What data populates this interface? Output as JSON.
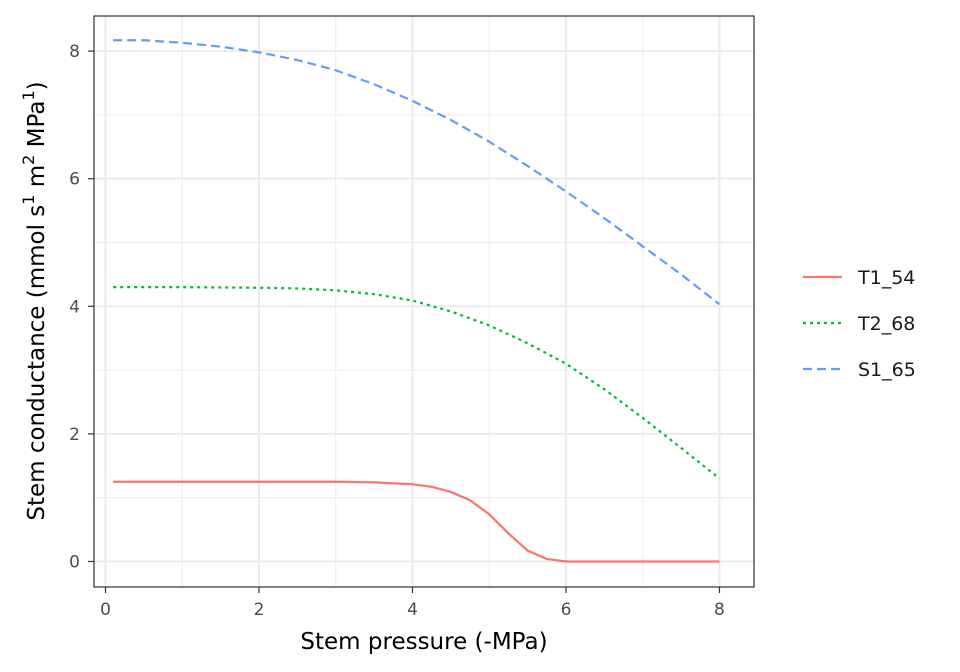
{
  "chart_data": {
    "type": "line",
    "xlabel": "Stem pressure (-MPa)",
    "ylabel_parts": [
      "Stem conductance  (mmol  s",
      "1",
      "  m",
      "2",
      "  MPa",
      "1",
      ")"
    ],
    "xlim": [
      -0.15,
      8.45
    ],
    "ylim": [
      -0.4,
      8.55
    ],
    "x_ticks": [
      0,
      2,
      4,
      6,
      8
    ],
    "x_tick_labels": [
      "0",
      "2",
      "4",
      "6",
      "8"
    ],
    "y_ticks": [
      0,
      2,
      4,
      6,
      8
    ],
    "y_tick_labels": [
      "0",
      "2",
      "4",
      "6",
      "8"
    ],
    "grid": true,
    "legend_position": "right",
    "series": [
      {
        "name": "T1_54",
        "color": "#F8766D",
        "dash": "solid",
        "x": [
          0.1,
          1,
          2,
          3,
          3.5,
          4,
          4.25,
          4.5,
          4.75,
          5,
          5.25,
          5.5,
          5.75,
          6,
          6.5,
          7,
          8
        ],
        "y": [
          1.25,
          1.25,
          1.25,
          1.25,
          1.24,
          1.21,
          1.17,
          1.09,
          0.96,
          0.74,
          0.44,
          0.17,
          0.04,
          0.0,
          0.0,
          0.0,
          0.0
        ]
      },
      {
        "name": "T2_68",
        "color": "#00BA38",
        "dash": "dotted",
        "x": [
          0.1,
          1,
          2,
          2.5,
          3,
          3.5,
          4,
          4.5,
          5,
          5.5,
          6,
          6.5,
          7,
          7.5,
          8
        ],
        "y": [
          4.3,
          4.3,
          4.29,
          4.28,
          4.25,
          4.19,
          4.09,
          3.92,
          3.7,
          3.42,
          3.1,
          2.7,
          2.25,
          1.78,
          1.3
        ]
      },
      {
        "name": "S1_65",
        "color": "#619CFF",
        "dash": "dashed",
        "x": [
          0.1,
          0.5,
          1,
          1.5,
          2,
          2.5,
          3,
          3.5,
          4,
          4.5,
          5,
          5.5,
          6,
          6.5,
          7,
          7.5,
          8
        ],
        "y": [
          8.17,
          8.17,
          8.13,
          8.07,
          7.98,
          7.86,
          7.7,
          7.48,
          7.22,
          6.92,
          6.58,
          6.2,
          5.8,
          5.38,
          4.94,
          4.5,
          4.03
        ]
      }
    ]
  }
}
